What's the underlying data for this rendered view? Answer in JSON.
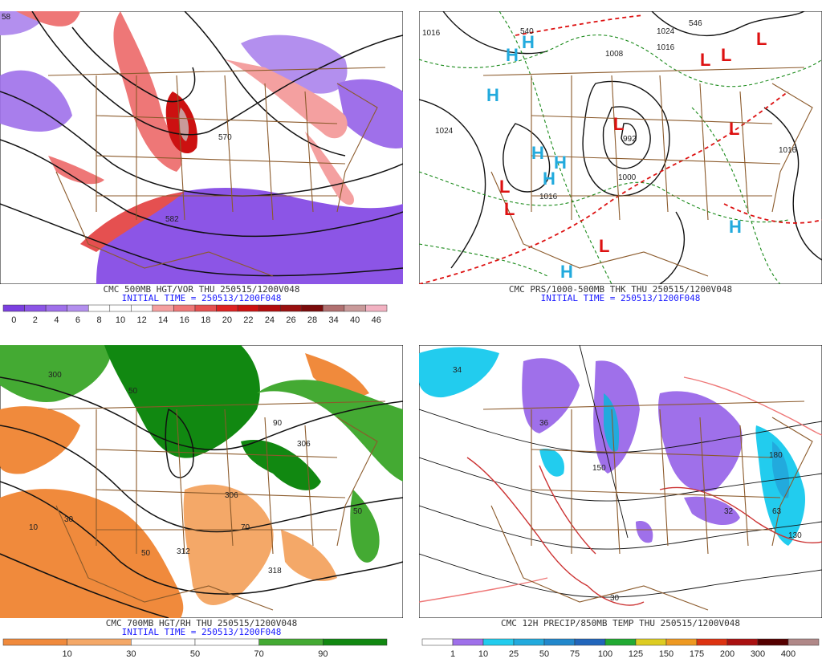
{
  "colors": {
    "state_lines": "#8b5a2b",
    "contour": "#111111",
    "high": "#22aadd",
    "low": "#dd1111",
    "caption_time": "#1a1aff"
  },
  "panels": [
    {
      "id": "vort",
      "title": "CMC 500MB HGT/VOR THU 250515/1200V048",
      "init": "INITIAL TIME = 250513/1200F048",
      "contour_labels": [
        "570",
        "582",
        "58"
      ],
      "scale": {
        "labels": [
          "0",
          "2",
          "4",
          "6",
          "8",
          "10",
          "12",
          "14",
          "16",
          "18",
          "20",
          "22",
          "24",
          "26",
          "28",
          "34",
          "40",
          "46"
        ],
        "colors": [
          "#7b3fe0",
          "#8c55e6",
          "#9f70ea",
          "#b38fee",
          "#ffffff",
          "#ffffff",
          "#ffffff",
          "#f4a0a0",
          "#ee7777",
          "#e55050",
          "#dd2222",
          "#cc1111",
          "#b20d0d",
          "#991010",
          "#7a0b0b",
          "#b07070",
          "#c99a9a",
          "#f2b2c2"
        ]
      }
    },
    {
      "id": "prs",
      "title": "CMC PRS/1000-500MB THK THU 250515/1200V048",
      "init": "INITIAL TIME = 250513/1200F048",
      "contour_labels": [
        "1024",
        "1016",
        "1016",
        "1024",
        "1016",
        "1008",
        "1000",
        "992",
        "1016",
        "540",
        "546"
      ],
      "highs": [
        "H",
        "H",
        "H",
        "H",
        "H",
        "H",
        "H",
        "H"
      ],
      "lows": [
        "L",
        "L",
        "L",
        "L",
        "L",
        "L",
        "L",
        "L"
      ]
    },
    {
      "id": "rh",
      "title": "CMC 700MB HGT/RH THU 250515/1200V048",
      "init": "INITIAL TIME = 250513/1200F048",
      "contour_labels": [
        "300",
        "306",
        "306",
        "312",
        "318",
        "10",
        "50",
        "90",
        "70",
        "30",
        "50",
        "50"
      ],
      "scale": {
        "labels": [
          "10",
          "30",
          "50",
          "70",
          "90"
        ],
        "colors": [
          "#f08a3c",
          "#f4a868",
          "#ffffff",
          "#ffffff",
          "#44aa33",
          "#118811"
        ]
      }
    },
    {
      "id": "precip",
      "title": "CMC 12H PRECIP/850MB TEMP THU 250515/1200V048",
      "init": "",
      "contour_labels": [
        "34",
        "36",
        "150",
        "180",
        "63",
        "32",
        "130",
        "30"
      ],
      "scale": {
        "labels": [
          "1",
          "10",
          "25",
          "50",
          "75",
          "100",
          "125",
          "150",
          "175",
          "200",
          "300",
          "400"
        ],
        "colors": [
          "#ffffff",
          "#9f70ea",
          "#22ccee",
          "#22aadd",
          "#2288cc",
          "#2266bb",
          "#22aa33",
          "#ddcc22",
          "#ee9922",
          "#dd3311",
          "#aa1111",
          "#550000",
          "#b08888"
        ]
      }
    }
  ]
}
